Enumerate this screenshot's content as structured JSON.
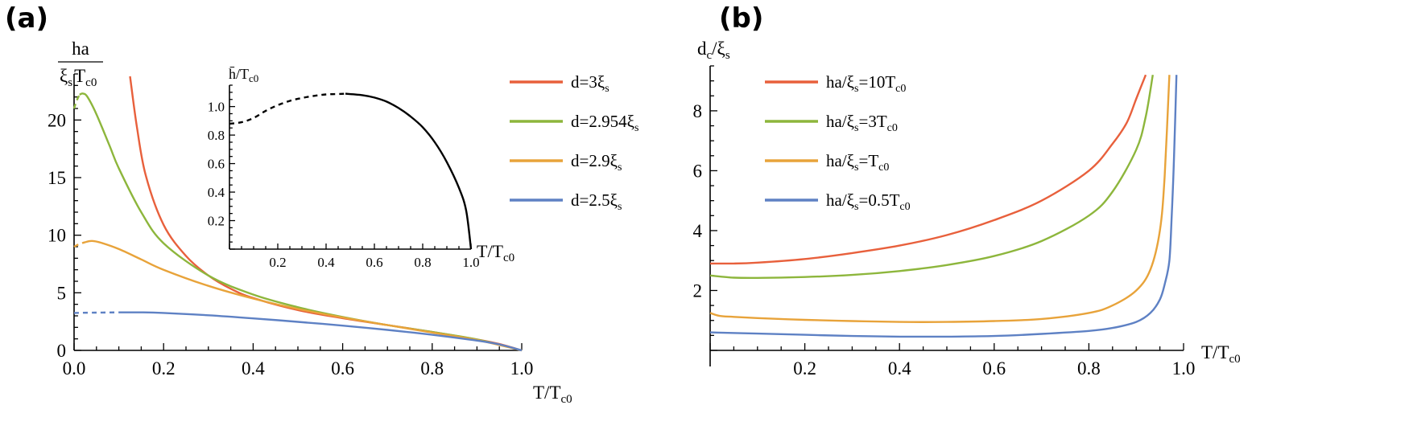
{
  "panels": {
    "a": {
      "label": "(a)"
    },
    "b": {
      "label": "(b)"
    }
  },
  "colors": {
    "red": "#E8603C",
    "green": "#8DB63C",
    "orange": "#E8A33A",
    "blue": "#5E81C4",
    "black": "#000000"
  },
  "chart_data": [
    {
      "id": "a",
      "type": "line",
      "ylabel_num": "ha",
      "ylabel_den_left": "ξ",
      "ylabel_den_sub": "s",
      "ylabel_den_right": "T",
      "ylabel_den_right_sub": "c0",
      "xlabel": "T/T",
      "xlabel_sub": "c0",
      "xlim": [
        0,
        1
      ],
      "ylim": [
        0,
        24
      ],
      "xticks": [
        "0.0",
        "0.2",
        "0.4",
        "0.6",
        "0.8",
        "1.0"
      ],
      "yticks": [
        "0",
        "5",
        "10",
        "15",
        "20"
      ],
      "series": [
        {
          "name": "d=3ξ",
          "name_sub": "s",
          "color": "red",
          "dashed_x": [],
          "x": [
            0.125,
            0.14,
            0.16,
            0.2,
            0.25,
            0.3,
            0.35,
            0.4,
            0.5,
            0.6,
            0.7,
            0.8,
            0.9,
            0.95,
            1.0
          ],
          "y": [
            23.8,
            19.5,
            15.2,
            10.9,
            8.2,
            6.5,
            5.35,
            4.55,
            3.5,
            2.8,
            2.2,
            1.6,
            0.95,
            0.55,
            0.0
          ]
        },
        {
          "name": "d=2.954ξ",
          "name_sub": "s",
          "color": "green",
          "dashed_x": [
            0,
            0.012
          ],
          "x": [
            0.0,
            0.005,
            0.012,
            0.02,
            0.03,
            0.05,
            0.08,
            0.1,
            0.15,
            0.2,
            0.3,
            0.4,
            0.5,
            0.6,
            0.7,
            0.8,
            0.9,
            1.0
          ],
          "y": [
            21.0,
            21.6,
            22.2,
            22.3,
            22.0,
            20.5,
            17.7,
            15.8,
            12.0,
            9.3,
            6.5,
            4.85,
            3.75,
            2.9,
            2.2,
            1.6,
            0.95,
            0.0
          ]
        },
        {
          "name": "d=2.9ξ",
          "name_sub": "s",
          "color": "orange",
          "dashed_x": [
            0,
            0.025
          ],
          "x": [
            0.0,
            0.01,
            0.025,
            0.04,
            0.06,
            0.1,
            0.15,
            0.2,
            0.3,
            0.4,
            0.5,
            0.6,
            0.7,
            0.8,
            0.9,
            1.0
          ],
          "y": [
            9.0,
            9.2,
            9.4,
            9.5,
            9.35,
            8.8,
            7.9,
            7.0,
            5.6,
            4.5,
            3.6,
            2.85,
            2.2,
            1.55,
            0.9,
            0.0
          ]
        },
        {
          "name": "d=2.5ξ",
          "name_sub": "s",
          "color": "blue",
          "dashed_x": [
            0,
            0.1
          ],
          "x": [
            0.0,
            0.05,
            0.1,
            0.15,
            0.2,
            0.3,
            0.4,
            0.5,
            0.6,
            0.7,
            0.8,
            0.9,
            0.95,
            1.0
          ],
          "y": [
            3.25,
            3.28,
            3.3,
            3.3,
            3.25,
            3.05,
            2.78,
            2.48,
            2.15,
            1.78,
            1.35,
            0.85,
            0.52,
            0.0
          ]
        }
      ],
      "inset": {
        "type": "line",
        "ylabel": "h̄/T",
        "ylabel_sub": "c0",
        "xlabel": "T/T",
        "xlabel_sub": "c0",
        "xlim": [
          0,
          1
        ],
        "ylim": [
          0,
          1.15
        ],
        "xticks": [
          "0.2",
          "0.4",
          "0.6",
          "0.8",
          "1.0"
        ],
        "yticks": [
          "0.2",
          "0.4",
          "0.6",
          "0.8",
          "1.0"
        ],
        "series": [
          {
            "style": "dashed",
            "color": "black",
            "x": [
              0.0,
              0.05,
              0.1,
              0.15,
              0.2,
              0.25,
              0.3,
              0.35,
              0.4,
              0.45,
              0.48
            ],
            "y": [
              0.88,
              0.89,
              0.92,
              0.97,
              1.01,
              1.04,
              1.06,
              1.075,
              1.085,
              1.088,
              1.09
            ]
          },
          {
            "style": "solid",
            "color": "black",
            "x": [
              0.48,
              0.55,
              0.6,
              0.65,
              0.7,
              0.75,
              0.8,
              0.85,
              0.9,
              0.95,
              0.98,
              1.0
            ],
            "y": [
              1.09,
              1.08,
              1.063,
              1.035,
              0.99,
              0.93,
              0.855,
              0.75,
              0.61,
              0.43,
              0.27,
              0.0
            ]
          }
        ]
      }
    },
    {
      "id": "b",
      "type": "line",
      "ylabel": "d",
      "ylabel_sub": "c",
      "ylabel_tail": "/ξ",
      "ylabel_tail_sub": "s",
      "xlabel": "T/T",
      "xlabel_sub": "c0",
      "xlim": [
        0,
        1
      ],
      "ylim": [
        0,
        9.5
      ],
      "xticks": [
        "0.2",
        "0.4",
        "0.6",
        "0.8",
        "1.0"
      ],
      "yticks": [
        "2",
        "4",
        "6",
        "8"
      ],
      "series": [
        {
          "name": "ha/ξ",
          "name_sub": "s",
          "name_tail": "=10T",
          "name_tail_sub": "c0",
          "color": "red",
          "x": [
            0.0,
            0.05,
            0.1,
            0.2,
            0.3,
            0.4,
            0.5,
            0.6,
            0.7,
            0.8,
            0.85,
            0.88,
            0.9,
            0.92
          ],
          "y": [
            2.9,
            2.9,
            2.93,
            3.05,
            3.25,
            3.5,
            3.85,
            4.35,
            5.0,
            6.0,
            6.9,
            7.6,
            8.4,
            9.2
          ]
        },
        {
          "name": "ha/ξ",
          "name_sub": "s",
          "name_tail": "=3T",
          "name_tail_sub": "c0",
          "color": "green",
          "x": [
            0.0,
            0.05,
            0.1,
            0.2,
            0.3,
            0.4,
            0.5,
            0.6,
            0.7,
            0.8,
            0.85,
            0.9,
            0.92,
            0.935
          ],
          "y": [
            2.5,
            2.43,
            2.42,
            2.45,
            2.52,
            2.65,
            2.85,
            3.15,
            3.65,
            4.5,
            5.3,
            6.7,
            7.8,
            9.2
          ]
        },
        {
          "name": "ha/ξ",
          "name_sub": "s",
          "name_tail": "=T",
          "name_tail_sub": "c0",
          "color": "orange",
          "x": [
            0.0,
            0.02,
            0.05,
            0.1,
            0.2,
            0.3,
            0.4,
            0.5,
            0.6,
            0.7,
            0.8,
            0.85,
            0.9,
            0.93,
            0.95,
            0.96,
            0.97
          ],
          "y": [
            1.25,
            1.15,
            1.12,
            1.08,
            1.02,
            0.98,
            0.95,
            0.95,
            0.98,
            1.05,
            1.25,
            1.5,
            2.0,
            2.7,
            4.0,
            5.8,
            9.2
          ]
        },
        {
          "name": "ha/ξ",
          "name_sub": "s",
          "name_tail": "=0.5T",
          "name_tail_sub": "c0",
          "color": "blue",
          "x": [
            0.0,
            0.1,
            0.2,
            0.3,
            0.4,
            0.5,
            0.6,
            0.7,
            0.8,
            0.85,
            0.9,
            0.93,
            0.95,
            0.96,
            0.97,
            0.975,
            0.98,
            0.985
          ],
          "y": [
            0.6,
            0.56,
            0.52,
            0.48,
            0.46,
            0.46,
            0.48,
            0.55,
            0.65,
            0.75,
            0.95,
            1.25,
            1.7,
            2.2,
            3.0,
            4.5,
            6.5,
            9.2
          ]
        }
      ]
    }
  ]
}
